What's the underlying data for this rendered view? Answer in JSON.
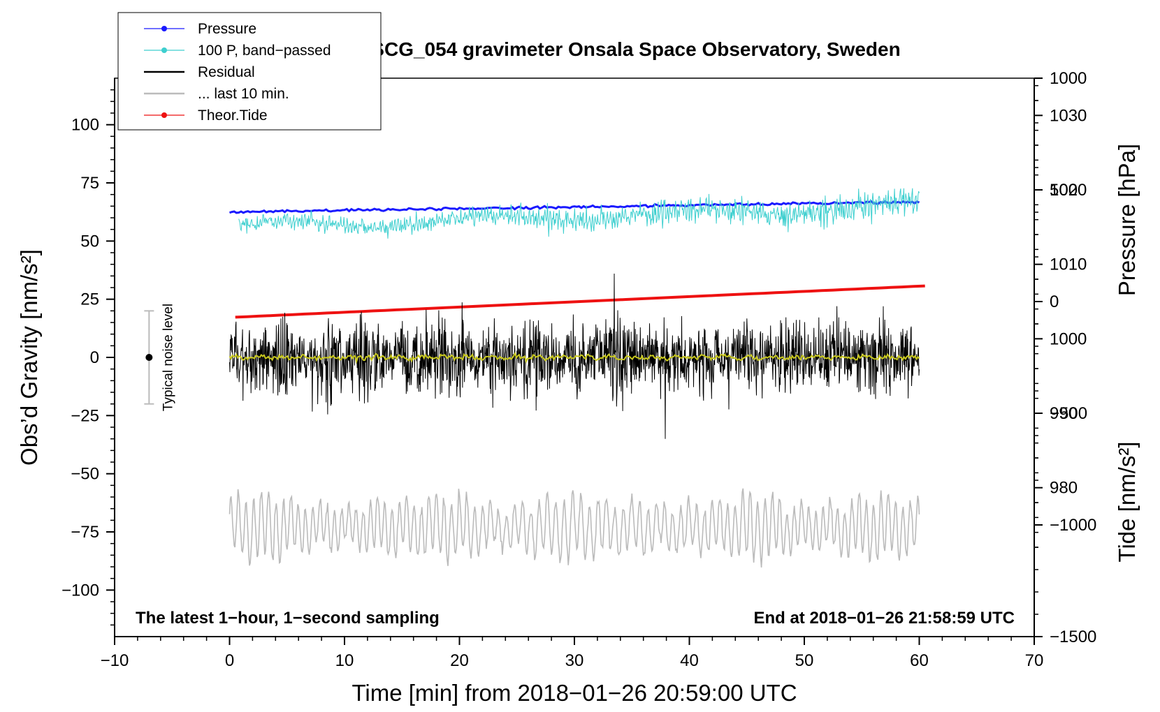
{
  "chart_data": {
    "type": "line",
    "title": "SCG_054 gravimeter Onsala Space Observatory, Sweden",
    "xlabel": "Time [min] from 2018−01−26 20:59:00 UTC",
    "ylabel_left": "Obs’d Gravity [nm/s²]",
    "ylabel_right_top": "Pressure [hPa]",
    "ylabel_right_bottom": "Tide [nm/s²]",
    "xlim": [
      -10,
      70
    ],
    "ylim_left": [
      -120,
      120
    ],
    "ylim_pressure": [
      960,
      1035
    ],
    "ylim_tide": [
      -1500,
      1000
    ],
    "x_ticks": [
      "−10",
      "0",
      "10",
      "20",
      "30",
      "40",
      "50",
      "60",
      "70"
    ],
    "x_tick_values": [
      -10,
      0,
      10,
      20,
      30,
      40,
      50,
      60,
      70
    ],
    "left_ticks": [
      "100",
      "75",
      "50",
      "25",
      "0",
      "−25",
      "−50",
      "−75",
      "−100"
    ],
    "left_tick_values": [
      100,
      75,
      50,
      25,
      0,
      -25,
      -50,
      -75,
      -100
    ],
    "pressure_ticks": [
      "1030",
      "1020",
      "1010",
      "1000",
      "990",
      "980"
    ],
    "pressure_tick_values": [
      1030,
      1020,
      1010,
      1000,
      990,
      980
    ],
    "tide_ticks": [
      "1000",
      "500",
      "0",
      "−500",
      "−1000",
      "−1500"
    ],
    "tide_tick_values": [
      1000,
      500,
      0,
      -500,
      -1000,
      -1500
    ],
    "legend": [
      {
        "label": "Pressure",
        "color": "#1a1aff",
        "marker": true
      },
      {
        "label": "100 P, band−passed",
        "color": "#3ecfcf",
        "marker": true
      },
      {
        "label": "Residual",
        "color": "#000000",
        "marker": false
      },
      {
        "label": "... last 10 min.",
        "color": "#bbbbbb",
        "marker": false
      },
      {
        "label": "Theor.Tide",
        "color": "#ee1111",
        "marker": true
      }
    ],
    "series": [
      {
        "name": "Pressure",
        "axis": "pressure",
        "color": "#1a1aff",
        "x_range": [
          0,
          60
        ],
        "start": 1017.0,
        "end": 1018.4,
        "noise": 0.08
      },
      {
        "name": "100 P, band-passed",
        "axis": "left",
        "color": "#3ecfcf",
        "x_range": [
          0.8,
          60
        ],
        "center_start": 56,
        "center_end": 65,
        "amp_start": 2.0,
        "amp_end": 4.0
      },
      {
        "name": "Residual",
        "axis": "left",
        "color": "#000000",
        "x_range": [
          0,
          60
        ],
        "center": 0,
        "amp": 9
      },
      {
        "name": "Residual (smoothed)",
        "axis": "left",
        "color": "#c8c81e",
        "x_range": [
          0,
          60
        ],
        "center": 0,
        "amp": 1.0
      },
      {
        "name": "... last 10 min.",
        "axis": "left",
        "color": "#bbbbbb",
        "x_range": [
          0,
          60
        ],
        "center": -73,
        "amp": 14
      },
      {
        "name": "Theor.Tide",
        "axis": "tide",
        "color": "#ee1111",
        "x_range": [
          0.5,
          60.5
        ],
        "start": -70,
        "end": 70
      }
    ],
    "noise_level": {
      "x": -7,
      "center": 0,
      "low": -20,
      "high": 20,
      "label": "Typical noise level"
    },
    "annotations": {
      "bottom_left": "The latest 1−hour, 1−second sampling",
      "bottom_right": "End at 2018−01−26 21:58:59 UTC"
    }
  }
}
